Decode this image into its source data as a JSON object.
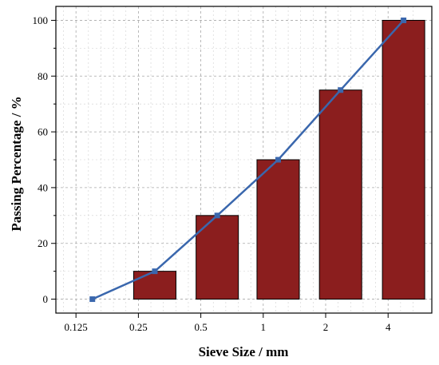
{
  "chart_data": {
    "type": "bar",
    "title": "",
    "xlabel": "Sieve Size / mm",
    "ylabel": "Passing Percentage  / %",
    "x_scale": "log2",
    "x_ticks": [
      {
        "value": 0.125,
        "label": "0.125"
      },
      {
        "value": 0.25,
        "label": "0.25"
      },
      {
        "value": 0.5,
        "label": "0.5"
      },
      {
        "value": 1,
        "label": "1"
      },
      {
        "value": 2,
        "label": "2"
      },
      {
        "value": 4,
        "label": "4"
      }
    ],
    "xlim": [
      0.1,
      6.5
    ],
    "ylim": [
      -5,
      105
    ],
    "y_ticks": [
      0,
      20,
      40,
      60,
      80,
      100
    ],
    "grid": true,
    "categories": [
      "0.15",
      "0.3",
      "0.6",
      "1.18",
      "2.36",
      "4.75"
    ],
    "bars": {
      "color": "#8b1e1e",
      "width_factor": 1.6,
      "values": [
        0,
        10,
        30,
        50,
        75,
        100
      ]
    },
    "series": [
      {
        "type": "line",
        "color": "#3a67ad",
        "x": [
          0.15,
          0.3,
          0.6,
          1.18,
          2.36,
          4.75
        ],
        "y": [
          0,
          10,
          30,
          50,
          75,
          100
        ]
      }
    ]
  }
}
